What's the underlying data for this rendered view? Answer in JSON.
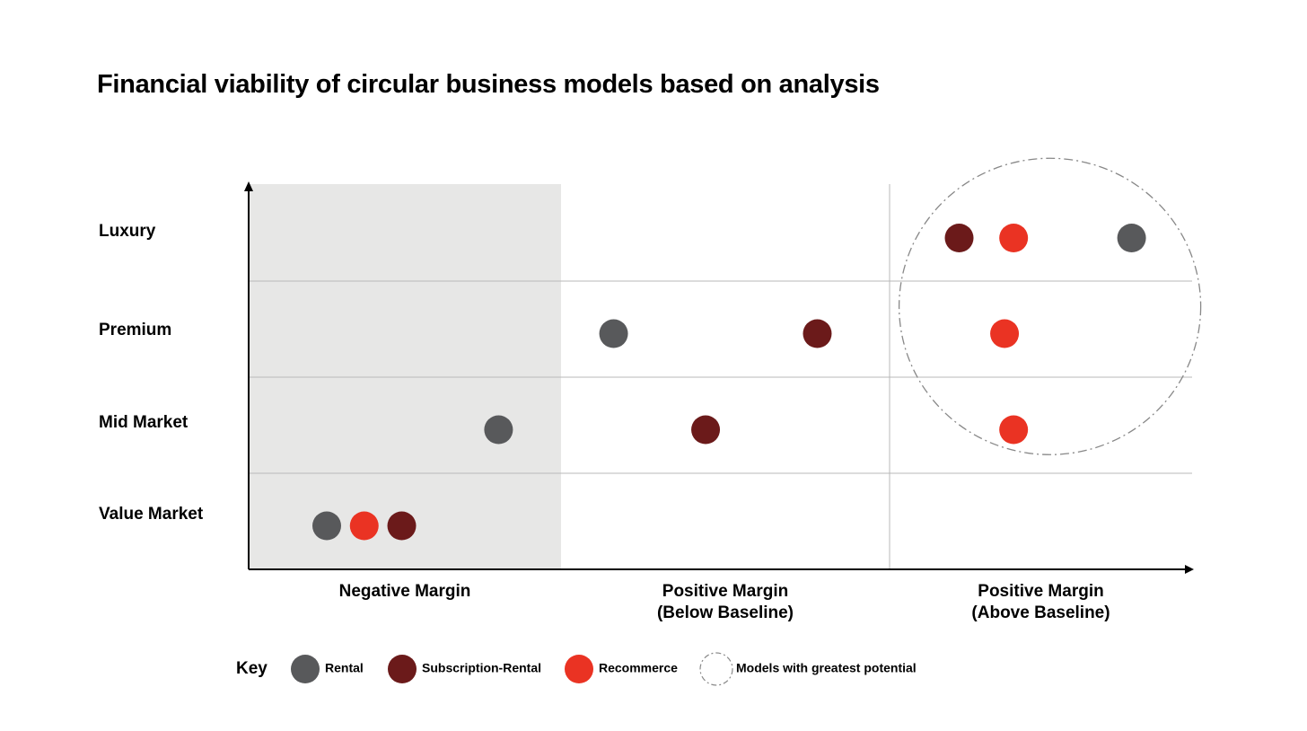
{
  "chart_data": {
    "type": "scatter",
    "title": "Financial viability of circular business models based on analysis",
    "rows": [
      "Luxury",
      "Premium",
      "Mid Market",
      "Value Market"
    ],
    "columns": [
      "Negative Margin",
      "Positive Margin\n(Below Baseline)",
      "Positive Margin\n(Above Baseline)"
    ],
    "shaded_column": "Negative Margin",
    "grid": true,
    "series": [
      {
        "name": "Rental",
        "color": "#58595b"
      },
      {
        "name": "Subscription-Rental",
        "color": "#6b1a1a"
      },
      {
        "name": "Recommerce",
        "color": "#ea3323"
      }
    ],
    "points": [
      {
        "row": "Luxury",
        "column": "Positive Margin\n(Above Baseline)",
        "series": "Subscription-Rental",
        "position_in_column": 0.23
      },
      {
        "row": "Luxury",
        "column": "Positive Margin\n(Above Baseline)",
        "series": "Recommerce",
        "position_in_column": 0.41
      },
      {
        "row": "Luxury",
        "column": "Positive Margin\n(Above Baseline)",
        "series": "Rental",
        "position_in_column": 0.8
      },
      {
        "row": "Premium",
        "column": "Positive Margin\n(Below Baseline)",
        "series": "Rental",
        "position_in_column": 0.16
      },
      {
        "row": "Premium",
        "column": "Positive Margin\n(Below Baseline)",
        "series": "Subscription-Rental",
        "position_in_column": 0.78
      },
      {
        "row": "Premium",
        "column": "Positive Margin\n(Above Baseline)",
        "series": "Recommerce",
        "position_in_column": 0.38
      },
      {
        "row": "Mid Market",
        "column": "Negative Margin",
        "series": "Rental",
        "position_in_column": 0.8
      },
      {
        "row": "Mid Market",
        "column": "Positive Margin\n(Below Baseline)",
        "series": "Subscription-Rental",
        "position_in_column": 0.44
      },
      {
        "row": "Mid Market",
        "column": "Positive Margin\n(Above Baseline)",
        "series": "Recommerce",
        "position_in_column": 0.41
      },
      {
        "row": "Value Market",
        "column": "Negative Margin",
        "series": "Rental",
        "position_in_column": 0.25
      },
      {
        "row": "Value Market",
        "column": "Negative Margin",
        "series": "Recommerce",
        "position_in_column": 0.37
      },
      {
        "row": "Value Market",
        "column": "Negative Margin",
        "series": "Subscription-Rental",
        "position_in_column": 0.49
      }
    ],
    "highlight": {
      "label": "Models with greatest potential",
      "style": "dash-dot circle",
      "column": "Positive Margin\n(Above Baseline)",
      "rows": [
        "Luxury",
        "Premium",
        "Mid Market"
      ]
    },
    "legend": {
      "title": "Key",
      "placement": "bottom",
      "items": [
        {
          "label": "Rental",
          "color": "#58595b",
          "kind": "dot"
        },
        {
          "label": "Subscription-Rental",
          "color": "#6b1a1a",
          "kind": "dot"
        },
        {
          "label": "Recommerce",
          "color": "#ea3323",
          "kind": "dot"
        },
        {
          "label": "Models with greatest potential",
          "color": "#888888",
          "kind": "dashed-circle"
        }
      ]
    }
  },
  "colors": {
    "shade": "#e7e7e6",
    "grid": "#b9b9b9",
    "axis": "#000000"
  }
}
